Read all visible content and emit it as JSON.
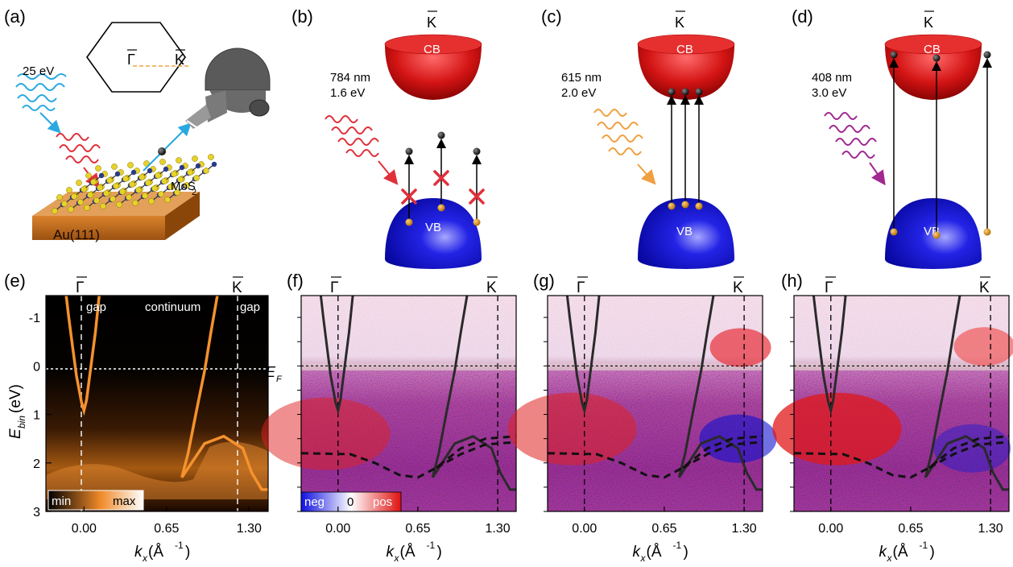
{
  "panels": {
    "a": {
      "label": "(a)",
      "gamma": "Γ",
      "kbar": "K",
      "photon_energy": "25 eV",
      "sample_mos2": "MoS",
      "sample_mos2_sub": "2",
      "substrate": "Au(111)"
    },
    "b": {
      "label": "(b)",
      "kbar": "K",
      "cb": "CB",
      "vb": "VB",
      "wavelength": "784 nm",
      "energy": "1.6 eV"
    },
    "c": {
      "label": "(c)",
      "kbar": "K",
      "cb": "CB",
      "vb": "VB",
      "wavelength": "615 nm",
      "energy": "2.0 eV"
    },
    "d": {
      "label": "(d)",
      "kbar": "K",
      "cb": "CB",
      "vb": "VB",
      "wavelength": "408 nm",
      "energy": "3.0 eV"
    },
    "e": {
      "label": "(e)",
      "gamma": "Γ",
      "kbar": "K",
      "region_gap_left": "gap",
      "region_continuum": "continuum",
      "region_gap_right": "gap",
      "scale_min": "min",
      "scale_max": "max",
      "ylabel_main": "E",
      "ylabel_sub": "bin",
      "ylabel_unit": " (eV)"
    },
    "f": {
      "label": "(f)",
      "gamma": "Γ",
      "kbar": "K",
      "ef_main": "E",
      "ef_sub": "F",
      "scale_neg": "neg",
      "scale_zero": "0",
      "scale_pos": "pos"
    },
    "g": {
      "label": "(g)",
      "gamma": "Γ",
      "kbar": "K"
    },
    "h": {
      "label": "(h)",
      "gamma": "Γ",
      "kbar": "K"
    }
  },
  "axes": {
    "x_ticks": [
      "0.00",
      "0.65",
      "1.30"
    ],
    "y_ticks": [
      "-1",
      "0",
      "1",
      "2",
      "3"
    ],
    "xlabel_main": "k",
    "xlabel_sub": "x",
    "xlabel_unit": " (Å",
    "xlabel_exp": "-1",
    "xlabel_close": ")"
  },
  "chart_data": {
    "type": "heatmap",
    "x_range": [
      -0.3,
      1.45
    ],
    "y_range": [
      -1.45,
      3.0
    ],
    "x_ticks": [
      0.0,
      0.65,
      1.3
    ],
    "y_ticks": [
      -1,
      0,
      1,
      2,
      3
    ],
    "fermi_level": 0,
    "gamma_k": 0.0,
    "kbar_k": 1.3,
    "gold_sp_band": [
      [
        0.12,
        -1.45
      ],
      [
        0.09,
        -0.7
      ],
      [
        0.05,
        0.1
      ],
      [
        0.02,
        0.7
      ],
      [
        0.0,
        0.92
      ],
      [
        -0.02,
        0.75
      ],
      [
        -0.06,
        0.2
      ],
      [
        -0.09,
        -0.4
      ],
      [
        -0.12,
        -1.0
      ],
      [
        -0.14,
        -1.45
      ]
    ],
    "gold_right_band": [
      [
        1.05,
        -1.45
      ],
      [
        1.0,
        -0.7
      ],
      [
        0.95,
        0.1
      ],
      [
        0.88,
        1.0
      ],
      [
        0.82,
        1.8
      ],
      [
        0.77,
        2.3
      ]
    ],
    "bulk_edge_band": [
      [
        0.77,
        2.3
      ],
      [
        0.95,
        1.6
      ],
      [
        1.1,
        1.45
      ],
      [
        1.25,
        1.7
      ],
      [
        1.32,
        2.2
      ],
      [
        1.4,
        2.55
      ],
      [
        1.45,
        2.55
      ]
    ],
    "mos2_vb_dashed": [
      [
        -0.3,
        1.8
      ],
      [
        0.1,
        1.82
      ],
      [
        0.3,
        2.0
      ],
      [
        0.5,
        2.25
      ],
      [
        0.65,
        2.3
      ],
      [
        0.8,
        2.1
      ],
      [
        1.0,
        1.7
      ],
      [
        1.2,
        1.5
      ],
      [
        1.45,
        1.45
      ]
    ]
  }
}
